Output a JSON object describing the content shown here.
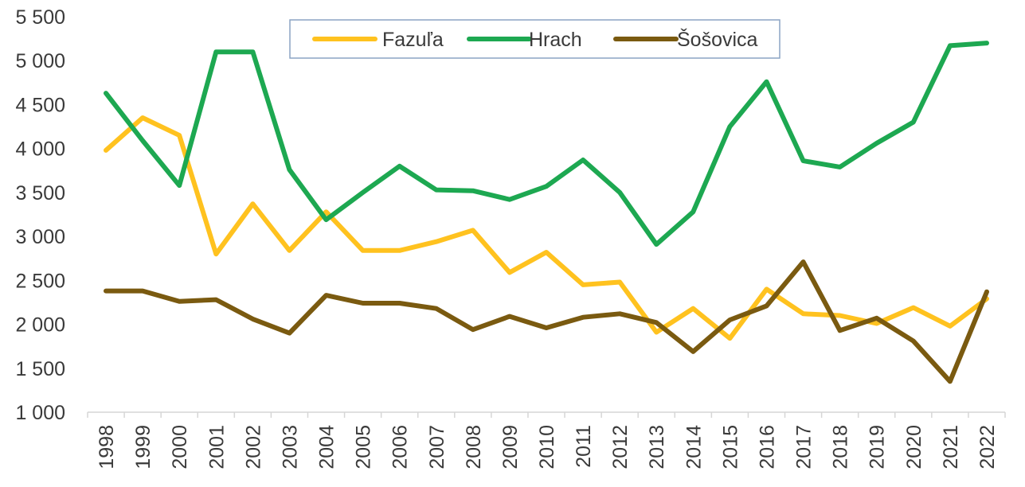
{
  "chart_data": {
    "type": "line",
    "title": "",
    "xlabel": "",
    "ylabel": "",
    "ylim": [
      1000,
      5500
    ],
    "y_ticks": [
      1000,
      1500,
      2000,
      2500,
      3000,
      3500,
      4000,
      4500,
      5000,
      5500
    ],
    "y_tick_labels": [
      "1 000",
      "1 500",
      "2 000",
      "2 500",
      "3 000",
      "3 500",
      "4 000",
      "4 500",
      "5 000",
      "5 500"
    ],
    "grid": false,
    "legend_position": "top-center",
    "categories": [
      "1998",
      "1999",
      "2000",
      "2001",
      "2002",
      "2003",
      "2004",
      "2005",
      "2006",
      "2007",
      "2008",
      "2009",
      "2010",
      "2011",
      "2012",
      "2013",
      "2014",
      "2015",
      "2016",
      "2017",
      "2018",
      "2019",
      "2020",
      "2021",
      "2022"
    ],
    "series": [
      {
        "name": "Fazuľa",
        "color": "#FFC21F",
        "values": [
          3980,
          4350,
          4150,
          2800,
          3370,
          2840,
          3280,
          2840,
          2840,
          2940,
          3070,
          2590,
          2820,
          2450,
          2480,
          1910,
          2180,
          1840,
          2400,
          2120,
          2100,
          2010,
          2190,
          1980,
          2290
        ]
      },
      {
        "name": "Hrach",
        "color": "#1DA851",
        "values": [
          4630,
          4090,
          3580,
          5100,
          5100,
          3760,
          3190,
          3500,
          3800,
          3530,
          3520,
          3420,
          3570,
          3870,
          3500,
          2910,
          3280,
          4250,
          4760,
          3860,
          3790,
          4060,
          4300,
          5170,
          5200
        ]
      },
      {
        "name": "Šošovica",
        "color": "#7A5A10",
        "values": [
          2380,
          2380,
          2260,
          2280,
          2060,
          1900,
          2330,
          2240,
          2240,
          2180,
          1940,
          2090,
          1960,
          2080,
          2120,
          2020,
          1690,
          2050,
          2210,
          2710,
          1930,
          2070,
          1810,
          1350,
          2370
        ]
      }
    ]
  }
}
